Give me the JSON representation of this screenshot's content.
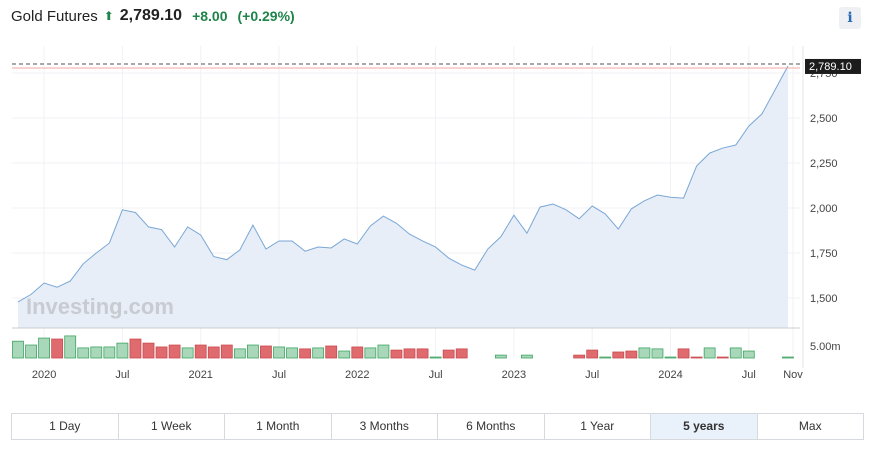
{
  "header": {
    "name": "Gold Futures",
    "price": "2,789.10",
    "change": "+8.00",
    "change_pct": "(+0.29%)",
    "direction_icon": "arrow-up-icon",
    "info_label": "i"
  },
  "colors": {
    "line": "#7aa7d6",
    "area": "#e7eef7",
    "up": "#a8d8b9",
    "down": "#e06b6e",
    "up_border": "#3fa463",
    "down_border": "#c94b50",
    "current_line": "#c0392b"
  },
  "watermark": "Investing.com",
  "chart_data": {
    "type": "area",
    "current_value_label": "2,789.10",
    "current_value": 2789.1,
    "y_ticks": [
      {
        "v": 1500,
        "label": "1,500"
      },
      {
        "v": 1750,
        "label": "1,750"
      },
      {
        "v": 2000,
        "label": "2,000"
      },
      {
        "v": 2250,
        "label": "2,250"
      },
      {
        "v": 2500,
        "label": "2,500"
      },
      {
        "v": 2750,
        "label": "2,750"
      }
    ],
    "volume_tick": {
      "v": 5,
      "label": "5.00m"
    },
    "ylim": [
      1400,
      2810
    ],
    "x_ticks": [
      {
        "i": 2,
        "label": "2020"
      },
      {
        "i": 8,
        "label": "Jul"
      },
      {
        "i": 14,
        "label": "2021"
      },
      {
        "i": 20,
        "label": "Jul"
      },
      {
        "i": 26,
        "label": "2022"
      },
      {
        "i": 32,
        "label": "Jul"
      },
      {
        "i": 38,
        "label": "2023"
      },
      {
        "i": 44,
        "label": "Jul"
      },
      {
        "i": 50,
        "label": "2024"
      },
      {
        "i": 56,
        "label": "Jul"
      },
      {
        "i": 60,
        "label": "Nov"
      }
    ],
    "values": [
      1478,
      1520,
      1583,
      1560,
      1594,
      1690,
      1750,
      1805,
      1990,
      1975,
      1895,
      1880,
      1783,
      1895,
      1850,
      1730,
      1713,
      1767,
      1905,
      1772,
      1817,
      1817,
      1760,
      1783,
      1778,
      1828,
      1800,
      1900,
      1955,
      1915,
      1855,
      1817,
      1783,
      1722,
      1683,
      1655,
      1772,
      1840,
      1960,
      1860,
      2005,
      2022,
      1990,
      1940,
      2011,
      1967,
      1883,
      1995,
      2040,
      2072,
      2060,
      2055,
      2233,
      2305,
      2333,
      2350,
      2455,
      2522,
      2655,
      2789
    ],
    "volume": [
      7,
      5.4,
      8.3,
      7.9,
      9.2,
      4.2,
      4.6,
      4.6,
      6.2,
      7.9,
      6.2,
      4.6,
      5.4,
      4.2,
      5.4,
      4.6,
      5.4,
      3.8,
      5.4,
      5,
      4.6,
      4.2,
      3.8,
      4.2,
      5,
      2.9,
      4.6,
      4.2,
      5.4,
      3.3,
      3.8,
      3.8,
      0.4,
      3.3,
      3.8,
      0,
      0,
      1.2,
      0,
      1.2,
      0,
      0,
      0,
      1.2,
      3.3,
      0.4,
      2.5,
      2.9,
      4.2,
      3.8,
      0.4,
      3.8,
      0.4,
      4.2,
      0.4,
      4.2,
      2.9,
      0,
      0,
      0.4
    ],
    "volume_up": [
      1,
      1,
      1,
      0,
      1,
      1,
      1,
      1,
      1,
      0,
      0,
      0,
      0,
      1,
      0,
      0,
      0,
      1,
      1,
      0,
      1,
      1,
      0,
      1,
      0,
      1,
      0,
      1,
      1,
      0,
      0,
      0,
      1,
      0,
      0,
      1,
      1,
      1,
      1,
      1,
      1,
      1,
      1,
      0,
      0,
      1,
      0,
      0,
      1,
      1,
      1,
      0,
      0,
      1,
      0,
      1,
      1,
      1,
      1,
      1
    ]
  },
  "range_tabs": [
    {
      "label": "1 Day"
    },
    {
      "label": "1 Week"
    },
    {
      "label": "1 Month"
    },
    {
      "label": "3 Months"
    },
    {
      "label": "6 Months"
    },
    {
      "label": "1 Year"
    },
    {
      "label": "5 years",
      "active": true
    },
    {
      "label": "Max"
    }
  ]
}
